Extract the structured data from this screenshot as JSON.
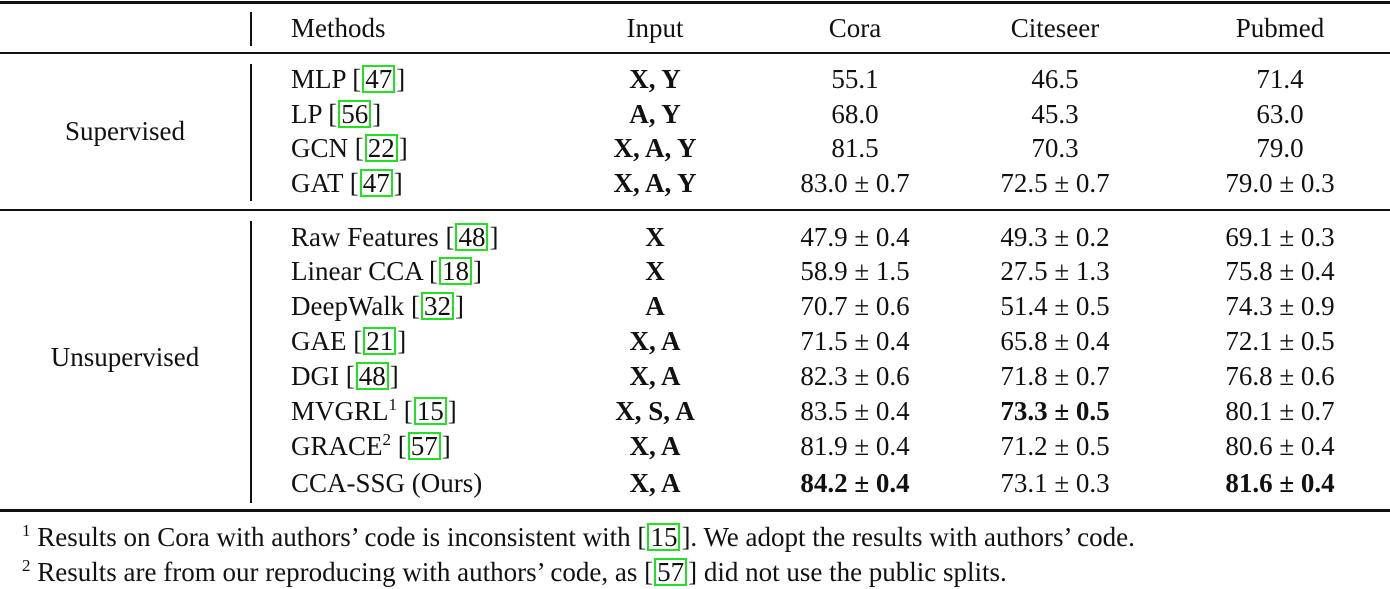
{
  "table": {
    "headers": {
      "group": "",
      "methods": "Methods",
      "input": "Input",
      "cora": "Cora",
      "citeseer": "Citeseer",
      "pubmed": "Pubmed"
    },
    "groups": [
      {
        "label": "Supervised",
        "rows": [
          {
            "method": "MLP",
            "sup": "",
            "ref": "47",
            "input": "X, Y",
            "cora": "55.1",
            "citeseer": "46.5",
            "pubmed": "71.4",
            "bold": []
          },
          {
            "method": "LP",
            "sup": "",
            "ref": "56",
            "input": "A, Y",
            "cora": "68.0",
            "citeseer": "45.3",
            "pubmed": "63.0",
            "bold": []
          },
          {
            "method": "GCN",
            "sup": "",
            "ref": "22",
            "input": "X, A, Y",
            "cora": "81.5",
            "citeseer": "70.3",
            "pubmed": "79.0",
            "bold": []
          },
          {
            "method": "GAT",
            "sup": "",
            "ref": "47",
            "input": "X, A, Y",
            "cora": "83.0 ± 0.7",
            "citeseer": "72.5 ± 0.7",
            "pubmed": "79.0 ± 0.3",
            "bold": []
          }
        ]
      },
      {
        "label": "Unsupervised",
        "rows": [
          {
            "method": "Raw Features",
            "sup": "",
            "ref": "48",
            "input": "X",
            "cora": "47.9 ± 0.4",
            "citeseer": "49.3 ± 0.2",
            "pubmed": "69.1 ± 0.3",
            "bold": []
          },
          {
            "method": "Linear CCA",
            "sup": "",
            "ref": "18",
            "input": "X",
            "cora": "58.9 ± 1.5",
            "citeseer": "27.5 ± 1.3",
            "pubmed": "75.8 ± 0.4",
            "bold": []
          },
          {
            "method": "DeepWalk",
            "sup": "",
            "ref": "32",
            "input": "A",
            "cora": "70.7 ± 0.6",
            "citeseer": "51.4 ± 0.5",
            "pubmed": "74.3 ± 0.9",
            "bold": []
          },
          {
            "method": "GAE",
            "sup": "",
            "ref": "21",
            "input": "X, A",
            "cora": "71.5 ± 0.4",
            "citeseer": "65.8 ± 0.4",
            "pubmed": "72.1 ± 0.5",
            "bold": []
          },
          {
            "method": "DGI",
            "sup": "",
            "ref": "48",
            "input": "X, A",
            "cora": "82.3 ± 0.6",
            "citeseer": "71.8 ± 0.7",
            "pubmed": "76.8 ± 0.6",
            "bold": []
          },
          {
            "method": "MVGRL",
            "sup": "1",
            "ref": "15",
            "input": "X, S, A",
            "cora": "83.5 ± 0.4",
            "citeseer": "73.3 ± 0.5",
            "pubmed": "80.1 ± 0.7",
            "bold": [
              "citeseer"
            ]
          },
          {
            "method": "GRACE",
            "sup": "2",
            "ref": "57",
            "input": "X, A",
            "cora": "81.9 ± 0.4",
            "citeseer": "71.2 ± 0.5",
            "pubmed": "80.6 ± 0.4",
            "bold": []
          },
          {
            "method": "CCA-SSG (Ours)",
            "sup": "",
            "ref": "",
            "input": "X, A",
            "cora": "84.2 ± 0.4",
            "citeseer": "73.1 ± 0.3",
            "pubmed": "81.6 ± 0.4",
            "bold": [
              "cora",
              "pubmed"
            ]
          }
        ]
      }
    ]
  },
  "footnotes": [
    {
      "mark": "1",
      "before": "Results on Cora with authors’ code is inconsistent with [",
      "ref": "15",
      "after": "]. We adopt the results with authors’ code."
    },
    {
      "mark": "2",
      "before": "Results are from our reproducing with authors’ code, as [",
      "ref": "57",
      "after": "] did not use the public splits."
    }
  ],
  "colors": {
    "citation_box": "#22e022",
    "text": "#111111"
  }
}
